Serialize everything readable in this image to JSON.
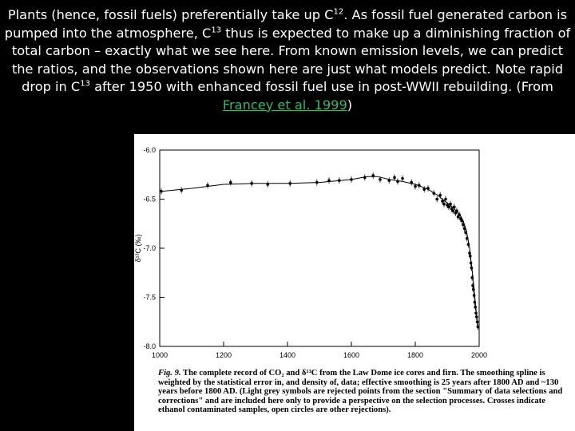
{
  "header": {
    "part1": "Plants (hence, fossil fuels) preferentially take up C",
    "sup1": "12",
    "part2": ". As fossil fuel generated carbon is pumped into the atmosphere, C",
    "sup2": "13",
    "part3": " thus is expected to make up a diminishing fraction of total carbon – exactly what we see here. From known emission levels, we can predict the ratios, and the observations shown here are just what models predict. Note rapid drop in C",
    "sup3": "13",
    "part4": " after 1950 with enhanced fossil fuel use in post-WWII rebuilding. (From ",
    "link_text": "Francey et al. 1999",
    "part5": ")"
  },
  "caption": {
    "label": "Fig. 9.",
    "text": " The complete record of CO₂ and δ¹³C from the Law Dome ice cores and firn. The smoothing spline is weighted by the statistical error in, and density of, data; effective smoothing is 25 years after 1800 AD and ~130 years before 1800 AD. (Light grey symbols are rejected points from the section \"Summary of data selections and corrections\" and are included here only to provide a perspective on the selection processes. Crosses indicate ethanol contaminated samples, open circles are other rejections)."
  },
  "colors": {
    "background": "#000000",
    "header_text": "#ffffff",
    "link": "#3cb371",
    "figure_bg": "#ffffff"
  },
  "chart_data": {
    "type": "scatter",
    "ylabel": "δ¹³C (‰)",
    "xlim": [
      1000,
      2000
    ],
    "ylim": [
      -8.0,
      -6.0
    ],
    "x_ticks": [
      "1000",
      "1200",
      "1400",
      "1600",
      "1800",
      "2000"
    ],
    "y_ticks": [
      "-6.0",
      "-6.5",
      "-7.0",
      "-7.5",
      "-8.0"
    ],
    "series": [
      {
        "type": "points",
        "x": [
          1005,
          1068,
          1150,
          1222,
          1288,
          1338,
          1408,
          1492,
          1530,
          1562,
          1600,
          1642,
          1668,
          1690,
          1718,
          1735,
          1745,
          1760,
          1788,
          1800,
          1812,
          1828,
          1840,
          1858,
          1868,
          1878,
          1885,
          1890,
          1895,
          1900,
          1905,
          1910,
          1914,
          1918,
          1922,
          1926,
          1930,
          1934,
          1938,
          1942,
          1946,
          1950,
          1954,
          1958,
          1962,
          1966,
          1970,
          1972,
          1974,
          1976,
          1978,
          1980,
          1982,
          1984,
          1986,
          1988,
          1990,
          1992,
          1994,
          1996
        ],
        "y": [
          -6.42,
          -6.41,
          -6.36,
          -6.33,
          -6.34,
          -6.35,
          -6.34,
          -6.33,
          -6.31,
          -6.31,
          -6.3,
          -6.28,
          -6.26,
          -6.3,
          -6.31,
          -6.28,
          -6.32,
          -6.29,
          -6.33,
          -6.37,
          -6.36,
          -6.4,
          -6.39,
          -6.44,
          -6.5,
          -6.46,
          -6.52,
          -6.55,
          -6.5,
          -6.56,
          -6.58,
          -6.55,
          -6.6,
          -6.62,
          -6.58,
          -6.64,
          -6.62,
          -6.68,
          -6.66,
          -6.7,
          -6.72,
          -6.76,
          -6.8,
          -6.84,
          -6.9,
          -6.96,
          -7.05,
          -7.08,
          -7.15,
          -7.2,
          -7.3,
          -7.38,
          -7.42,
          -7.48,
          -7.55,
          -7.6,
          -7.66,
          -7.7,
          -7.75,
          -7.8
        ]
      },
      {
        "type": "spline",
        "x": [
          1005,
          1100,
          1200,
          1300,
          1400,
          1500,
          1600,
          1650,
          1680,
          1720,
          1760,
          1800,
          1840,
          1870,
          1900,
          1920,
          1940,
          1950,
          1960,
          1970,
          1980,
          1990,
          1996
        ],
        "y": [
          -6.42,
          -6.39,
          -6.35,
          -6.34,
          -6.34,
          -6.33,
          -6.3,
          -6.27,
          -6.27,
          -6.3,
          -6.32,
          -6.35,
          -6.4,
          -6.46,
          -6.54,
          -6.59,
          -6.66,
          -6.72,
          -6.82,
          -7.0,
          -7.28,
          -7.62,
          -7.82
        ]
      }
    ]
  }
}
